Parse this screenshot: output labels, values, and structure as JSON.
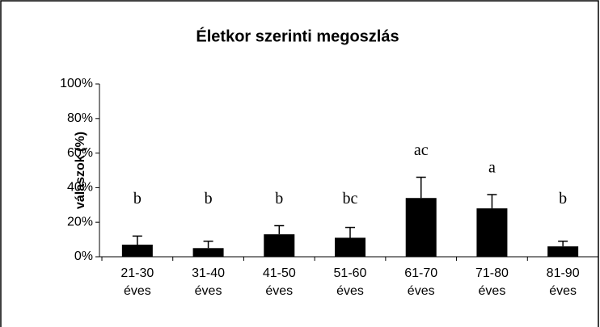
{
  "chart_data": {
    "type": "bar",
    "title": "Életkor szerinti megoszlás",
    "ylabel": "válaszok (%)",
    "categories": [
      "21-30 éves",
      "31-40 éves",
      "41-50 éves",
      "51-60 éves",
      "61-70 éves",
      "71-80 éves",
      "81-90 éves"
    ],
    "values": [
      7,
      5,
      13,
      11,
      34,
      28,
      6
    ],
    "errors": [
      5,
      4,
      5,
      6,
      12,
      8,
      3
    ],
    "annotations": [
      "b",
      "b",
      "b",
      "bc",
      "ac",
      "a",
      "b"
    ],
    "color": "#000000",
    "ylim": [
      0,
      100
    ],
    "yticks": [
      {
        "value": 0,
        "label": "0%"
      },
      {
        "value": 20,
        "label": "20%"
      },
      {
        "value": 40,
        "label": "40%"
      },
      {
        "value": 60,
        "label": "60%"
      },
      {
        "value": 80,
        "label": "80%"
      },
      {
        "value": 100,
        "label": "100%"
      }
    ],
    "grid": false
  }
}
